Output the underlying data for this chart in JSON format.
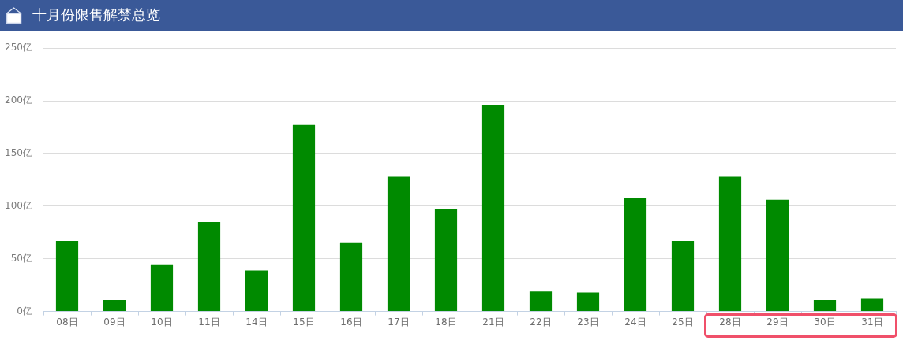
{
  "chart_data": {
    "type": "bar",
    "title": "十月份限售解禁总览",
    "categories": [
      "08日",
      "09日",
      "10日",
      "11日",
      "14日",
      "15日",
      "16日",
      "17日",
      "18日",
      "21日",
      "22日",
      "23日",
      "24日",
      "25日",
      "28日",
      "29日",
      "30日",
      "31日"
    ],
    "values": [
      67,
      11,
      44,
      85,
      39,
      177,
      65,
      128,
      97,
      196,
      19,
      18,
      108,
      67,
      128,
      106,
      11,
      12
    ],
    "color": "#008a00",
    "ylim": [
      0,
      250
    ],
    "yticks": [
      {
        "value": 0,
        "label": "0亿"
      },
      {
        "value": 50,
        "label": "50亿"
      },
      {
        "value": 100,
        "label": "100亿"
      },
      {
        "value": 150,
        "label": "150亿"
      },
      {
        "value": 200,
        "label": "200亿"
      },
      {
        "value": 250,
        "label": "250亿"
      }
    ],
    "grid": "y"
  }
}
